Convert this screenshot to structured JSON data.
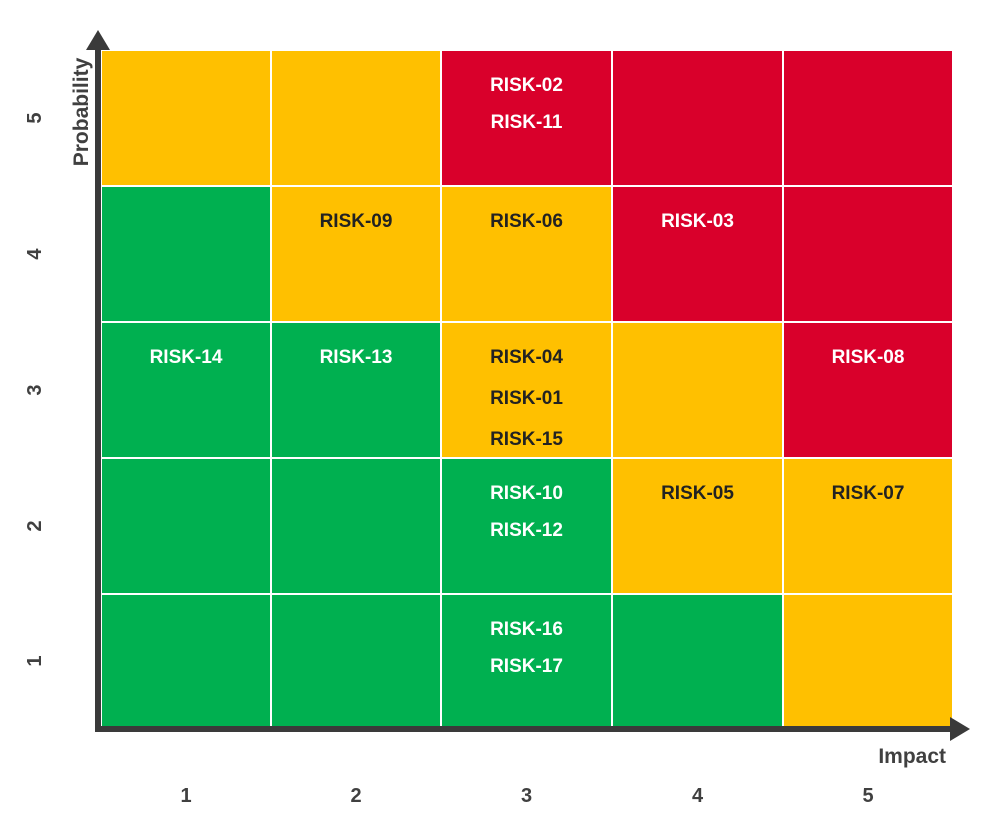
{
  "axes": {
    "x_label": "Impact",
    "y_label": "Probability",
    "x_ticks": [
      "1",
      "2",
      "3",
      "4",
      "5"
    ],
    "y_ticks": [
      "1",
      "2",
      "3",
      "4",
      "5"
    ]
  },
  "colors": {
    "green": "#00B050",
    "yellow": "#FFC000",
    "red": "#D9002B",
    "axis": "#3a3a3a",
    "tick_text": "#404040",
    "light_text": "#ffffff",
    "dark_text": "#222222"
  },
  "chart_data": {
    "type": "heatmap",
    "title": "",
    "xlabel": "Impact",
    "ylabel": "Probability",
    "x_categories": [
      "1",
      "2",
      "3",
      "4",
      "5"
    ],
    "y_categories": [
      "1",
      "2",
      "3",
      "4",
      "5"
    ],
    "cells": [
      {
        "impact": 1,
        "probability": 5,
        "level": "yellow",
        "risks": []
      },
      {
        "impact": 2,
        "probability": 5,
        "level": "yellow",
        "risks": []
      },
      {
        "impact": 3,
        "probability": 5,
        "level": "red",
        "risks": [
          "RISK-02",
          "RISK-11"
        ]
      },
      {
        "impact": 4,
        "probability": 5,
        "level": "red",
        "risks": []
      },
      {
        "impact": 5,
        "probability": 5,
        "level": "red",
        "risks": []
      },
      {
        "impact": 1,
        "probability": 4,
        "level": "green",
        "risks": []
      },
      {
        "impact": 2,
        "probability": 4,
        "level": "yellow",
        "risks": [
          "RISK-09"
        ]
      },
      {
        "impact": 3,
        "probability": 4,
        "level": "yellow",
        "risks": [
          "RISK-06"
        ]
      },
      {
        "impact": 4,
        "probability": 4,
        "level": "red",
        "risks": [
          "RISK-03"
        ]
      },
      {
        "impact": 5,
        "probability": 4,
        "level": "red",
        "risks": []
      },
      {
        "impact": 1,
        "probability": 3,
        "level": "green",
        "risks": [
          "RISK-14"
        ]
      },
      {
        "impact": 2,
        "probability": 3,
        "level": "green",
        "risks": [
          "RISK-13"
        ]
      },
      {
        "impact": 3,
        "probability": 3,
        "level": "yellow",
        "risks": [
          "RISK-04",
          "RISK-01",
          "RISK-15"
        ]
      },
      {
        "impact": 4,
        "probability": 3,
        "level": "yellow",
        "risks": []
      },
      {
        "impact": 5,
        "probability": 3,
        "level": "red",
        "risks": [
          "RISK-08"
        ]
      },
      {
        "impact": 1,
        "probability": 2,
        "level": "green",
        "risks": []
      },
      {
        "impact": 2,
        "probability": 2,
        "level": "green",
        "risks": []
      },
      {
        "impact": 3,
        "probability": 2,
        "level": "green",
        "risks": [
          "RISK-10",
          "RISK-12"
        ]
      },
      {
        "impact": 4,
        "probability": 2,
        "level": "yellow",
        "risks": [
          "RISK-05"
        ]
      },
      {
        "impact": 5,
        "probability": 2,
        "level": "yellow",
        "risks": [
          "RISK-07"
        ]
      },
      {
        "impact": 1,
        "probability": 1,
        "level": "green",
        "risks": []
      },
      {
        "impact": 2,
        "probability": 1,
        "level": "green",
        "risks": []
      },
      {
        "impact": 3,
        "probability": 1,
        "level": "green",
        "risks": [
          "RISK-16",
          "RISK-17"
        ]
      },
      {
        "impact": 4,
        "probability": 1,
        "level": "green",
        "risks": []
      },
      {
        "impact": 5,
        "probability": 1,
        "level": "yellow",
        "risks": []
      }
    ]
  }
}
